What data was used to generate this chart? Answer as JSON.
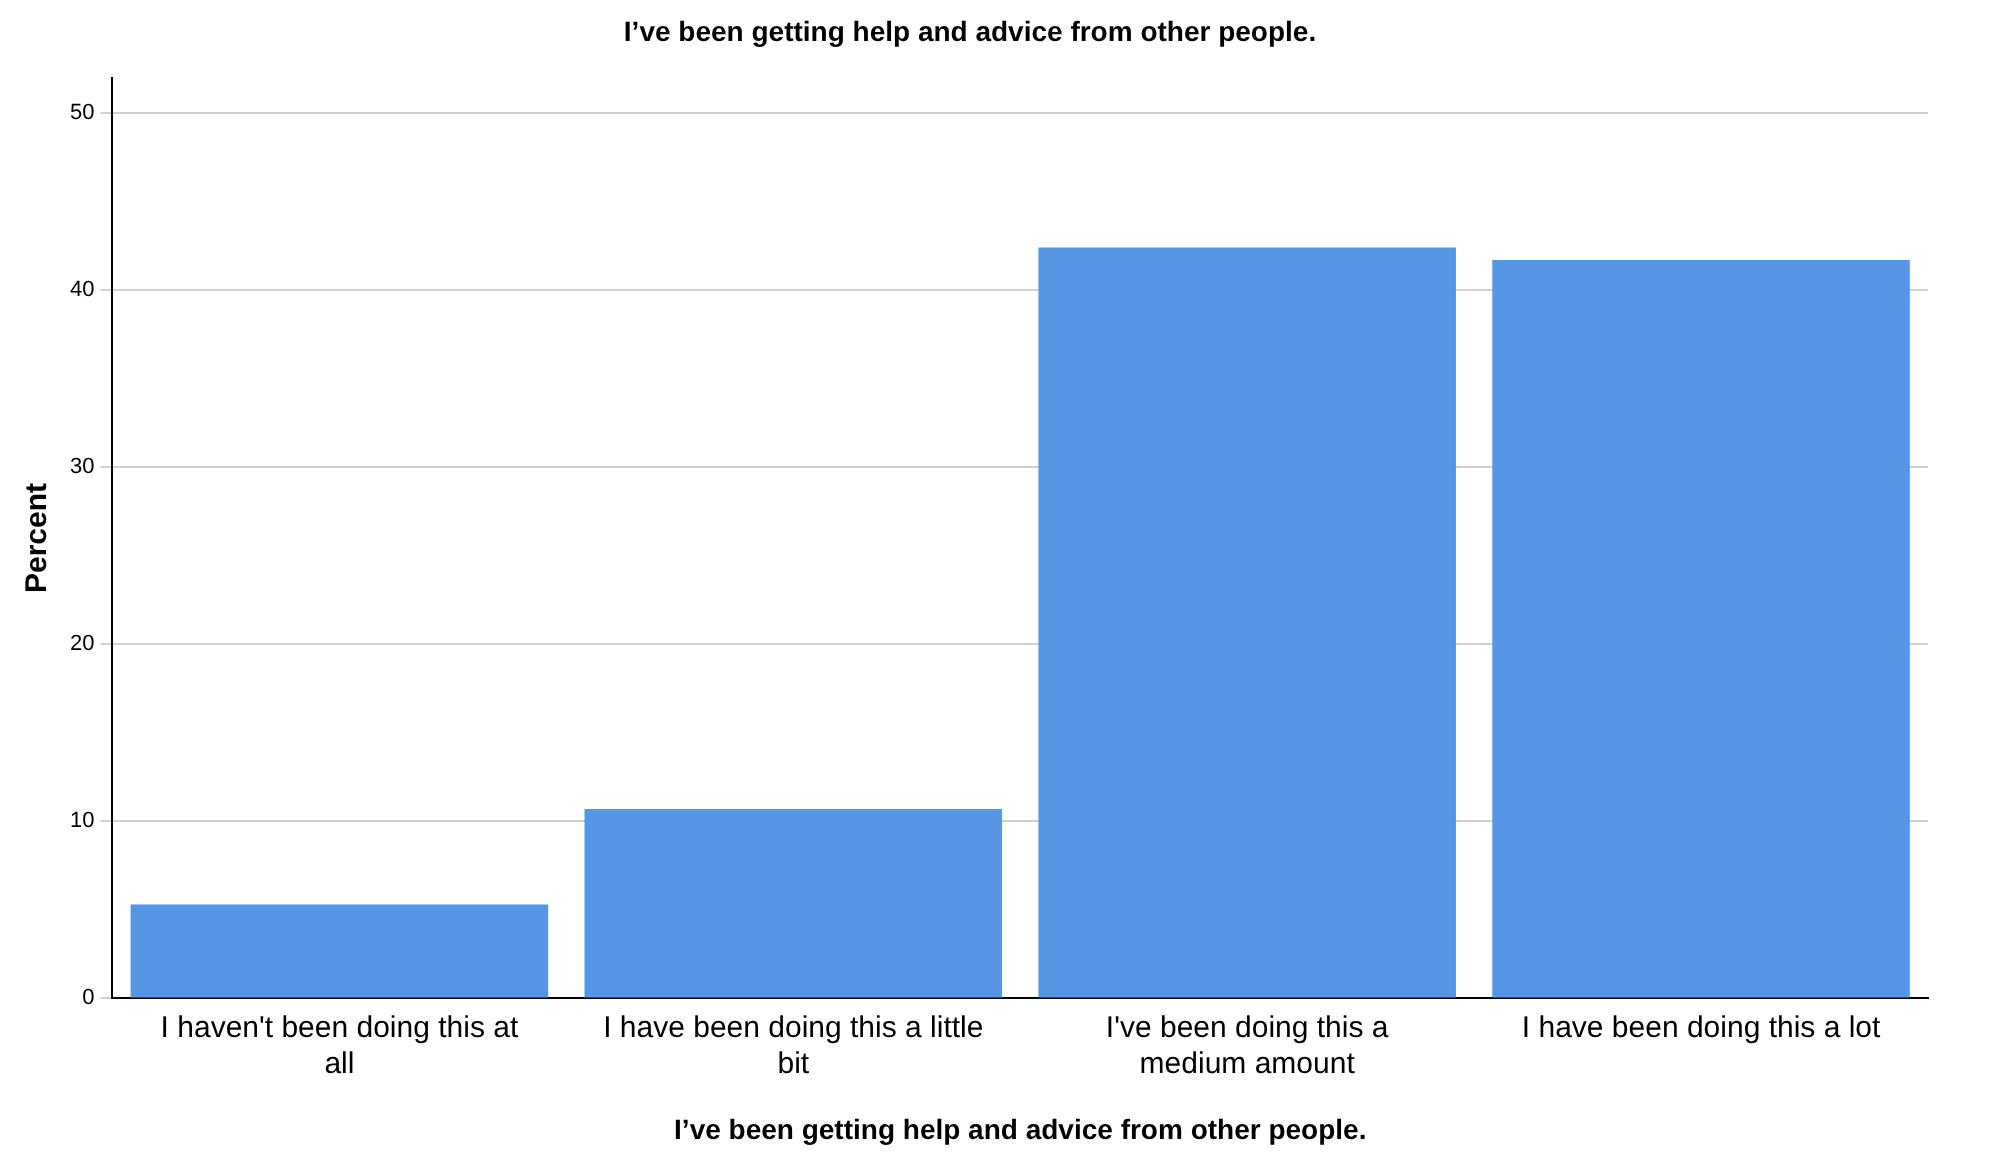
{
  "chart_data": {
    "type": "bar",
    "title": "I’ve been getting help and advice from other people.",
    "xlabel": "I’ve been getting help and advice from other people.",
    "ylabel": "Percent",
    "categories": [
      "I haven't been doing this at all",
      "I have been doing this a little bit",
      "I've been doing this a medium amount",
      "I have been doing this a lot"
    ],
    "values": [
      5.3,
      10.7,
      42.4,
      41.7
    ],
    "color": "#5596e5",
    "ylim": [
      0,
      52
    ],
    "yticks": [
      0,
      10,
      20,
      30,
      40,
      50
    ],
    "grid": "y",
    "legend": false
  }
}
